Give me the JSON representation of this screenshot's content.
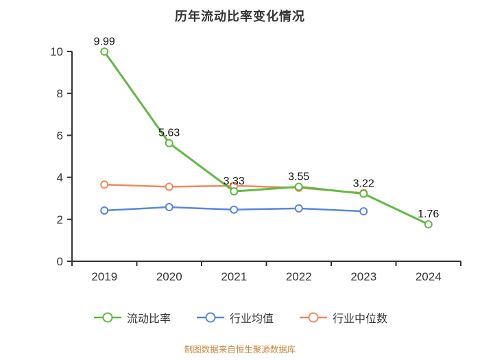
{
  "footer": "制图数据来自恒生聚源数据库",
  "colors": {
    "axis": "#333333",
    "tick_label": "#333333",
    "data_label": "#111111",
    "title": "#333333",
    "footer": "#C9873E",
    "background": "#FFFFFF",
    "current_ratio": "#60B942",
    "industry_mean": "#5487DF",
    "industry_median": "#F4875C"
  },
  "chart_data": {
    "type": "line",
    "title": "历年流动比率变化情况",
    "categories": [
      "2019",
      "2020",
      "2021",
      "2022",
      "2023",
      "2024"
    ],
    "series": [
      {
        "name": "流动比率",
        "color": "#60B942",
        "labeled": true,
        "values": [
          9.99,
          5.63,
          3.33,
          3.55,
          3.22,
          1.76
        ]
      },
      {
        "name": "行业均值",
        "color": "#5487DF",
        "labeled": false,
        "values": [
          2.42,
          2.58,
          2.46,
          2.52,
          2.38,
          null
        ]
      },
      {
        "name": "行业中位数",
        "color": "#F4875C",
        "labeled": false,
        "values": [
          3.65,
          3.55,
          3.6,
          3.5,
          3.25,
          null
        ]
      }
    ],
    "xlabel": "",
    "ylabel": "",
    "ylim": [
      0,
      10
    ],
    "yticks": [
      0,
      2,
      4,
      6,
      8,
      10
    ],
    "grid": false,
    "legend_position": "bottom"
  }
}
